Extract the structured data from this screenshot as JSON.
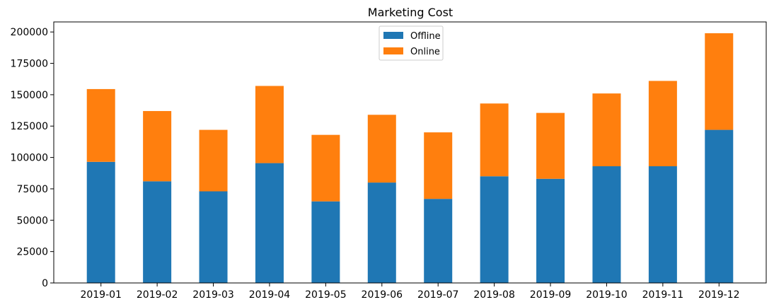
{
  "chart_data": {
    "type": "bar",
    "stacked": true,
    "title": "Marketing Cost",
    "xlabel": "",
    "ylabel": "",
    "categories": [
      "2019-01",
      "2019-02",
      "2019-03",
      "2019-04",
      "2019-05",
      "2019-06",
      "2019-07",
      "2019-08",
      "2019-09",
      "2019-10",
      "2019-11",
      "2019-12"
    ],
    "series": [
      {
        "name": "Offline",
        "color": "#1f77b4",
        "values": [
          96500,
          81000,
          73000,
          95500,
          65000,
          80000,
          67000,
          85000,
          83000,
          93000,
          93000,
          122000
        ]
      },
      {
        "name": "Online",
        "color": "#ff7f0e",
        "values": [
          58000,
          56000,
          49000,
          61500,
          53000,
          54000,
          53000,
          58000,
          52500,
          58000,
          68000,
          77000
        ]
      }
    ],
    "ylim": [
      0,
      208000
    ],
    "yticks": [
      0,
      25000,
      50000,
      75000,
      100000,
      125000,
      150000,
      175000,
      200000
    ],
    "grid": false,
    "legend": "top-center"
  }
}
